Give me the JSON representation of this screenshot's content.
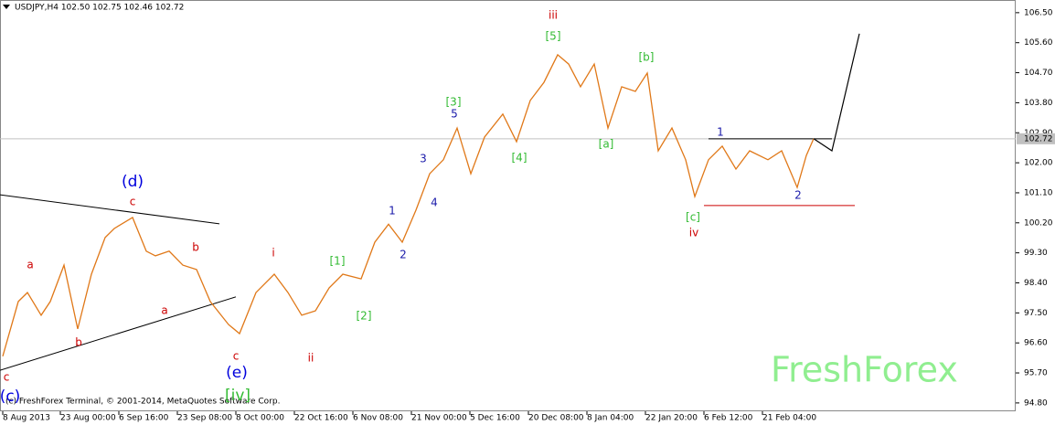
{
  "chart_data": {
    "type": "line",
    "title": "USDJPY,H4  102.50 102.75 102.46 102.72",
    "watermark": "FreshForex",
    "copyright": "(c) FreshForex Terminal, © 2001-2014, MetaQuotes Software Corp.",
    "last_price": 102.72,
    "xlim": [
      -3,
      1108
    ],
    "ylim": [
      94.55,
      106.88
    ],
    "xticks": [
      {
        "value": 0,
        "label": "8 Aug 2013"
      },
      {
        "value": 63,
        "label": "23 Aug 00:00"
      },
      {
        "value": 127,
        "label": "6 Sep 16:00"
      },
      {
        "value": 191,
        "label": "23 Sep 08:00"
      },
      {
        "value": 255,
        "label": "8 Oct 00:00"
      },
      {
        "value": 319,
        "label": "22 Oct 16:00"
      },
      {
        "value": 383,
        "label": "6 Nov 08:00"
      },
      {
        "value": 447,
        "label": "21 Nov 00:00"
      },
      {
        "value": 511,
        "label": "5 Dec 16:00"
      },
      {
        "value": 575,
        "label": "20 Dec 08:00"
      },
      {
        "value": 639,
        "label": "8 Jan 04:00"
      },
      {
        "value": 703,
        "label": "22 Jan 20:00"
      },
      {
        "value": 767,
        "label": "6 Feb 12:00"
      },
      {
        "value": 831,
        "label": "21 Feb 04:00"
      }
    ],
    "yticks": [
      {
        "value": 106.5,
        "label": "106.50"
      },
      {
        "value": 105.6,
        "label": "105.60"
      },
      {
        "value": 104.7,
        "label": "104.70"
      },
      {
        "value": 103.8,
        "label": "103.80"
      },
      {
        "value": 102.9,
        "label": "102.90"
      },
      {
        "value": 102,
        "label": "102.00"
      },
      {
        "value": 101.1,
        "label": "101.10"
      },
      {
        "value": 100.2,
        "label": "100.20"
      },
      {
        "value": 99.3,
        "label": "99.30"
      },
      {
        "value": 98.4,
        "label": "98.40"
      },
      {
        "value": 97.5,
        "label": "97.50"
      },
      {
        "value": 96.6,
        "label": "96.60"
      },
      {
        "value": 95.7,
        "label": "95.70"
      },
      {
        "value": 94.8,
        "label": "94.80"
      }
    ],
    "series": [
      {
        "color": "#e07818",
        "x": [
          0,
          17,
          27,
          42,
          52,
          67,
          82,
          97,
          112,
          122,
          142,
          157,
          167,
          182,
          197,
          212,
          227,
          247,
          259,
          277,
          297,
          312,
          327,
          342,
          357,
          372,
          392,
          407,
          422,
          437,
          452,
          467,
          482,
          497,
          512,
          527,
          547,
          562,
          577,
          592,
          607,
          619,
          632,
          647,
          662,
          677,
          692,
          705,
          717,
          732,
          747,
          757,
          772,
          787,
          802,
          817,
          837,
          852,
          869,
          879,
          887
        ],
        "values": [
          96.2,
          97.84,
          98.11,
          97.43,
          97.84,
          98.93,
          97.02,
          98.66,
          99.76,
          100.03,
          100.36,
          99.35,
          99.21,
          99.35,
          98.93,
          98.8,
          97.84,
          97.15,
          96.88,
          98.11,
          98.66,
          98.11,
          97.43,
          97.56,
          98.25,
          98.66,
          98.52,
          99.62,
          100.16,
          99.62,
          100.58,
          101.67,
          102.09,
          103.04,
          101.67,
          102.77,
          103.46,
          102.63,
          103.87,
          104.41,
          105.24,
          104.96,
          104.28,
          104.96,
          103.04,
          104.28,
          104.14,
          104.69,
          102.36,
          103.04,
          102.09,
          100.99,
          102.09,
          102.5,
          101.81,
          102.36,
          102.09,
          102.36,
          101.26,
          102.22,
          102.72
        ]
      },
      {
        "color": "#000000",
        "x": [
          887,
          907,
          937
        ],
        "values": [
          102.72,
          102.36,
          105.87
        ]
      }
    ],
    "lines": [
      {
        "color": "#000000",
        "x": [
          -3,
          237
        ],
        "y": [
          101.04,
          100.17
        ]
      },
      {
        "color": "#000000",
        "x": [
          -3,
          255
        ],
        "y": [
          95.78,
          97.98
        ]
      },
      {
        "color": "#000000",
        "x": [
          772,
          907
        ],
        "y": [
          102.72,
          102.72
        ]
      },
      {
        "color": "#cc0000",
        "x": [
          767,
          932
        ],
        "y": [
          100.72,
          100.72
        ]
      }
    ],
    "annotations": [
      {
        "text": "iii",
        "color": "#cc0000",
        "x": 602,
        "y": 106.41
      },
      {
        "text": "[5]",
        "color": "#33bb33",
        "x": 602,
        "y": 105.78
      },
      {
        "text": "[b]",
        "color": "#33bb33",
        "x": 704,
        "y": 105.15
      },
      {
        "text": "[3]",
        "color": "#33bb33",
        "x": 493,
        "y": 103.81
      },
      {
        "text": "5",
        "color": "#1a1aaa",
        "x": 494,
        "y": 103.46
      },
      {
        "text": "3",
        "color": "#1a1aaa",
        "x": 460,
        "y": 102.11
      },
      {
        "text": "4",
        "color": "#1a1aaa",
        "x": 472,
        "y": 100.8
      },
      {
        "text": "1",
        "color": "#1a1aaa",
        "x": 426,
        "y": 100.55
      },
      {
        "text": "2",
        "color": "#1a1aaa",
        "x": 438,
        "y": 99.24
      },
      {
        "text": "[4]",
        "color": "#33bb33",
        "x": 565,
        "y": 102.14
      },
      {
        "text": "[a]",
        "color": "#33bb33",
        "x": 660,
        "y": 102.55
      },
      {
        "text": "1",
        "color": "#1a1aaa",
        "x": 785,
        "y": 102.91
      },
      {
        "text": "2",
        "color": "#1a1aaa",
        "x": 870,
        "y": 101.02
      },
      {
        "text": "[c]",
        "color": "#33bb33",
        "x": 755,
        "y": 100.36
      },
      {
        "text": "iv",
        "color": "#cc0000",
        "x": 756,
        "y": 99.89
      },
      {
        "text": "(d)",
        "color": "#0000dd",
        "x": 142,
        "y": 101.43
      },
      {
        "text": "c",
        "color": "#cc0000",
        "x": 142,
        "y": 100.83
      },
      {
        "text": "a",
        "color": "#cc0000",
        "x": 30,
        "y": 98.93
      },
      {
        "text": "b",
        "color": "#cc0000",
        "x": 211,
        "y": 99.46
      },
      {
        "text": "a",
        "color": "#cc0000",
        "x": 177,
        "y": 97.56
      },
      {
        "text": "b",
        "color": "#cc0000",
        "x": 83,
        "y": 96.61
      },
      {
        "text": "c",
        "color": "#cc0000",
        "x": 255,
        "y": 96.2
      },
      {
        "text": "(e)",
        "color": "#0000dd",
        "x": 256,
        "y": 95.7
      },
      {
        "text": "[iv]",
        "color": "#33bb33",
        "x": 257,
        "y": 95.02
      },
      {
        "text": "c",
        "color": "#cc0000",
        "x": 4,
        "y": 95.56
      },
      {
        "text": "(c)",
        "color": "#0000dd",
        "x": 8,
        "y": 94.99
      },
      {
        "text": "i",
        "color": "#cc0000",
        "x": 296,
        "y": 99.29
      },
      {
        "text": "ii",
        "color": "#cc0000",
        "x": 337,
        "y": 96.14
      },
      {
        "text": "[1]",
        "color": "#33bb33",
        "x": 366,
        "y": 99.04
      },
      {
        "text": "[2]",
        "color": "#33bb33",
        "x": 395,
        "y": 97.4
      }
    ]
  }
}
